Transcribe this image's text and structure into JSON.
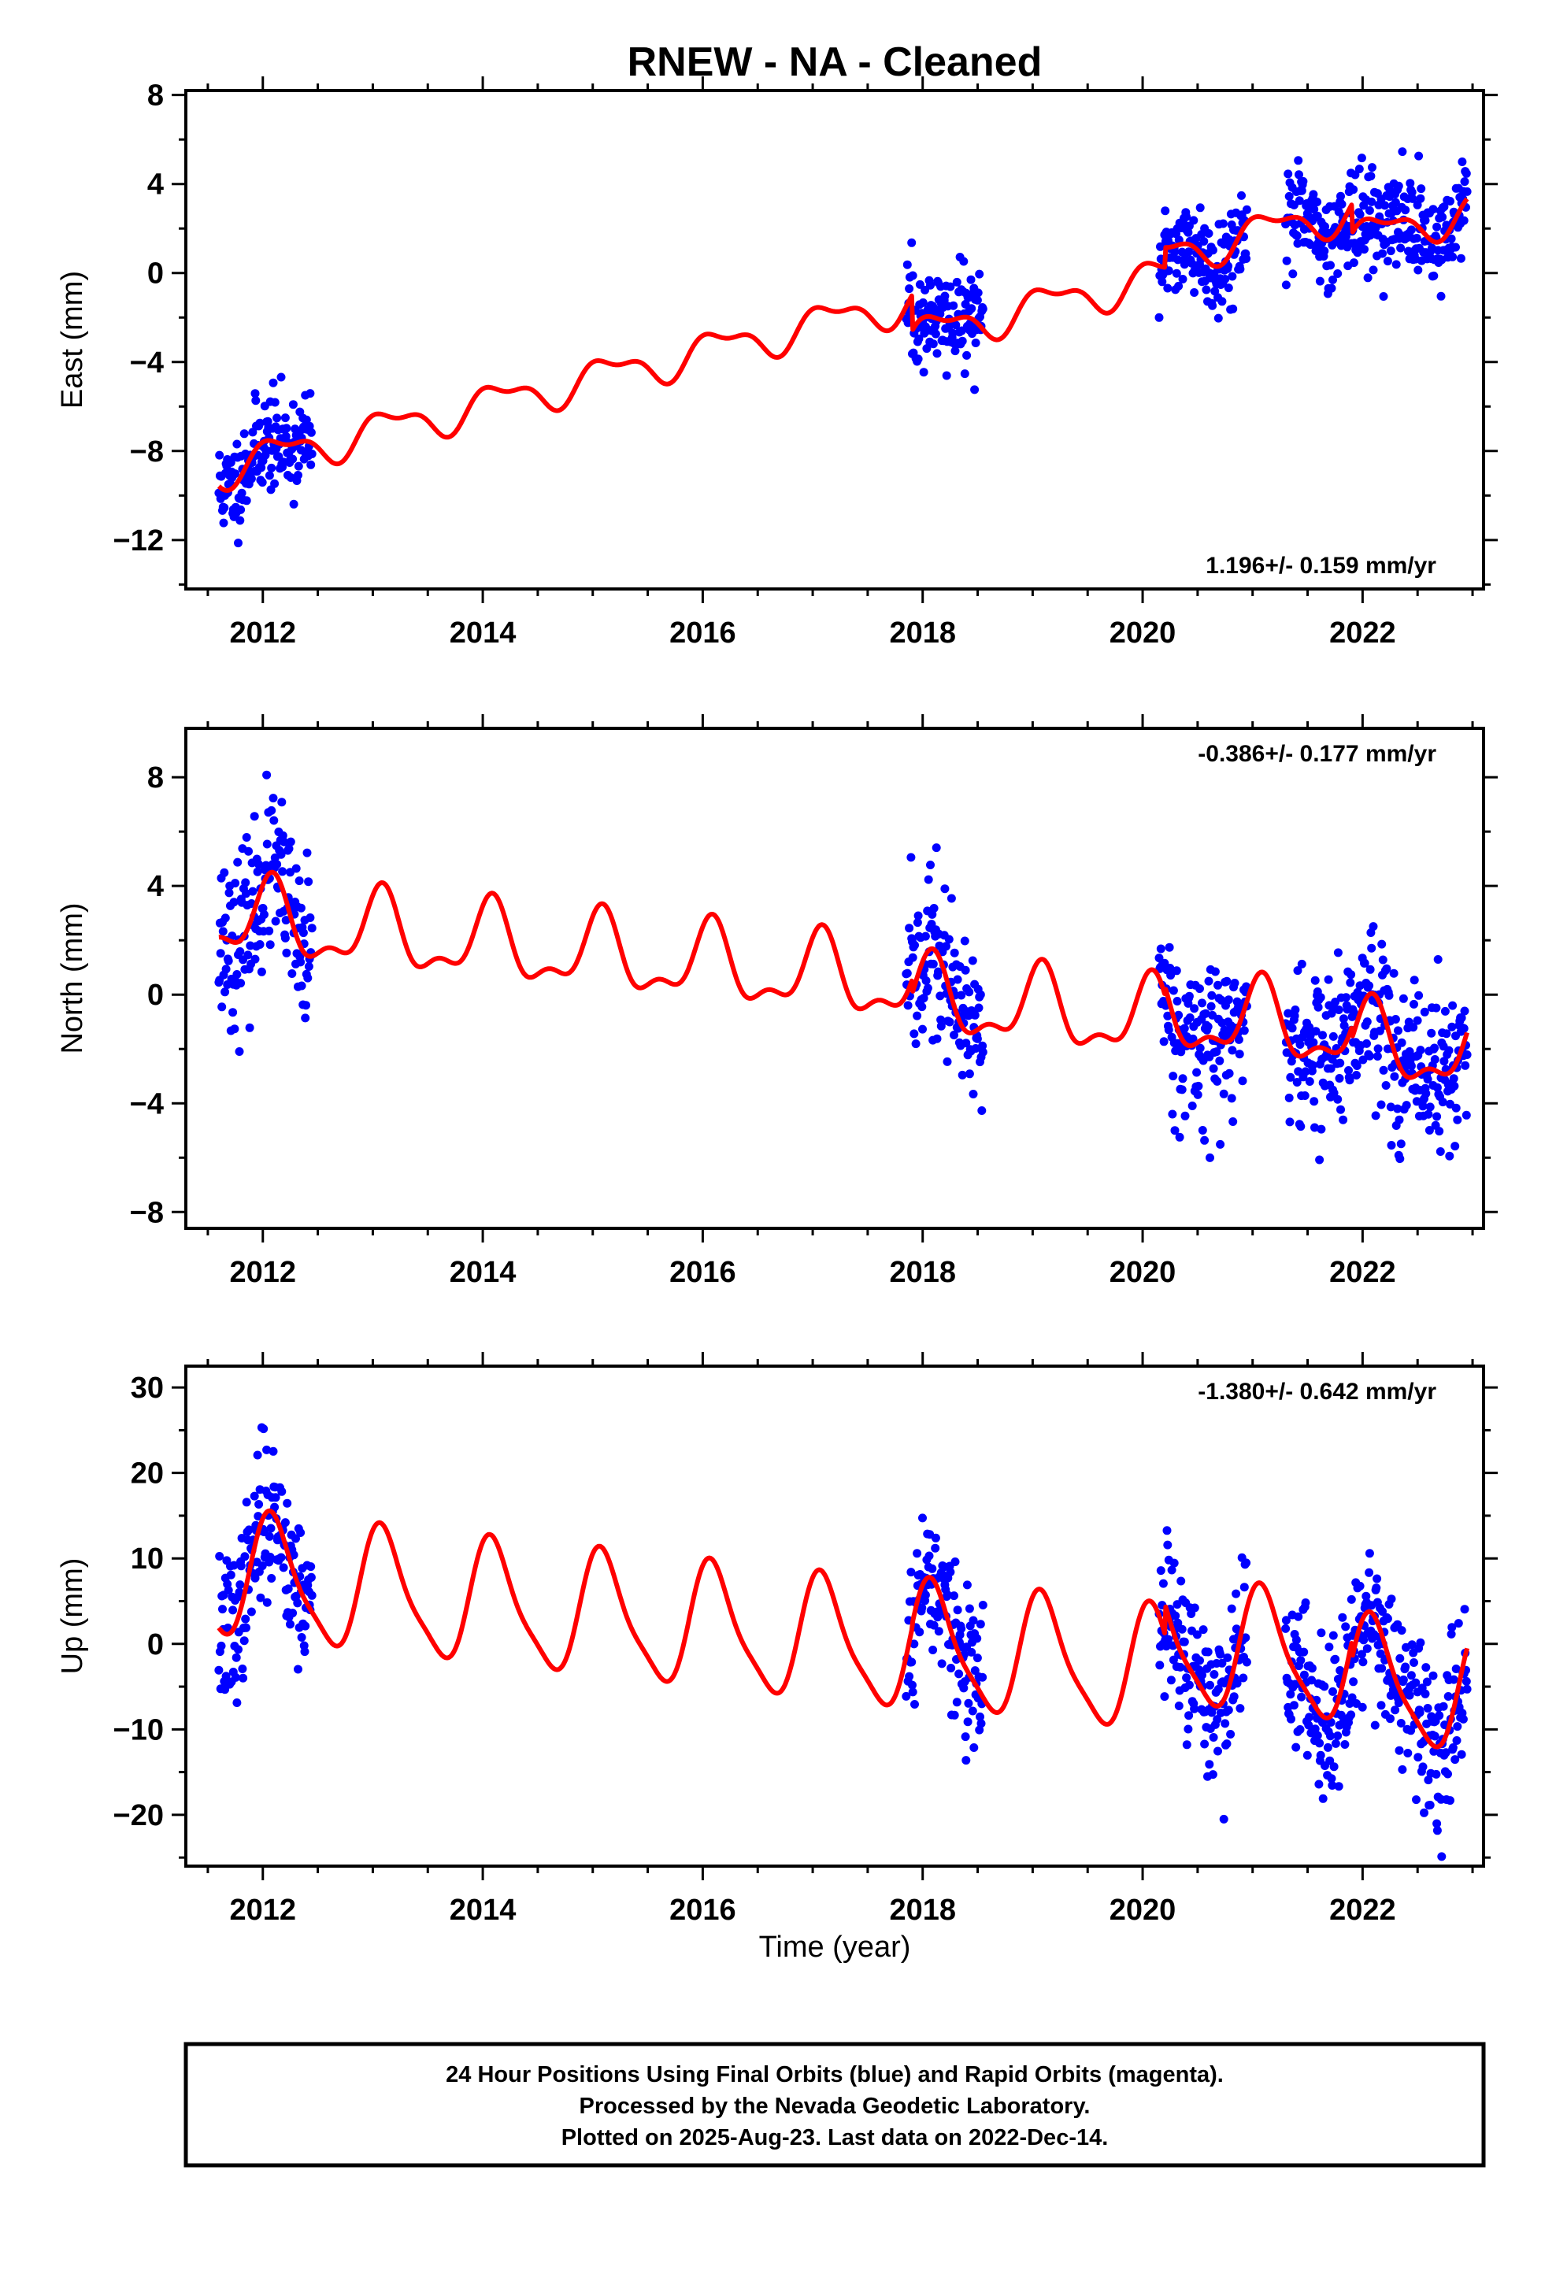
{
  "title": "RNEW  - NA - Cleaned",
  "x_label": "Time (year)",
  "caption": [
    "24 Hour Positions Using Final Orbits (blue) and Rapid Orbits (magenta).",
    "Processed by the Nevada Geodetic Laboratory.",
    "Plotted on 2025-Aug-23. Last data on 2022-Dec-14."
  ],
  "colors": {
    "points": "#0000ff",
    "model": "#ff0000",
    "frame": "#000000"
  },
  "chart_data": [
    {
      "type": "scatter",
      "ylabel": "East (mm)",
      "rate": "1.196+/- 0.159 mm/yr",
      "rate_position": "bottom-right",
      "xlim": [
        2011.3,
        2023.1
      ],
      "ylim": [
        -14.2,
        8.2
      ],
      "x_ticks": [
        2012,
        2014,
        2016,
        2018,
        2020,
        2022
      ],
      "x_tick_labels": [
        "2012",
        "2014",
        "2016",
        "2018",
        "2020",
        "2022"
      ],
      "y_ticks": [
        -12,
        -8,
        -4,
        0,
        4,
        8
      ],
      "y_tick_labels": [
        "−12",
        "−8",
        "−4",
        "0",
        "4",
        "8"
      ],
      "grid": false,
      "model": {
        "trend": [
          2011.6,
          -8.8,
          1.196
        ],
        "annual": [
          0.75,
          0.6
        ],
        "semiannual": [
          0.35,
          2.1
        ],
        "steps": [
          [
            2017.9,
            -1.6
          ],
          [
            2020.2,
            0.9
          ],
          [
            2021.9,
            -1.3
          ]
        ],
        "start": 2011.6,
        "end": 2022.95
      },
      "data_segments": [
        [
          2011.6,
          2012.45
        ],
        [
          2017.85,
          2018.55
        ],
        [
          2020.15,
          2020.95
        ],
        [
          2021.3,
          2022.95
        ]
      ],
      "noise_sd": 1.1,
      "noise_seed": 11,
      "series": [
        {
          "name": "Final Orbits",
          "marker": "points",
          "color": "#0000ff"
        },
        {
          "name": "Model",
          "marker": "line",
          "color": "#ff0000"
        }
      ]
    },
    {
      "type": "scatter",
      "ylabel": "North (mm)",
      "rate": "-0.386+/- 0.177 mm/yr",
      "rate_position": "top-right",
      "xlim": [
        2011.3,
        2023.1
      ],
      "ylim": [
        -8.6,
        9.8
      ],
      "x_ticks": [
        2012,
        2014,
        2016,
        2018,
        2020,
        2022
      ],
      "x_tick_labels": [
        "2012",
        "2014",
        "2016",
        "2018",
        "2020",
        "2022"
      ],
      "y_ticks": [
        -8,
        -4,
        0,
        4,
        8
      ],
      "y_tick_labels": [
        "−8",
        "−4",
        "0",
        "4",
        "8"
      ],
      "grid": false,
      "model": {
        "trend": [
          2011.6,
          2.8,
          -0.386
        ],
        "annual": [
          1.3,
          1.1
        ],
        "semiannual": [
          0.6,
          0.4
        ],
        "steps": [
          [
            2017.9,
            -0.5
          ],
          [
            2020.2,
            0.3
          ],
          [
            2021.9,
            -0.4
          ]
        ],
        "start": 2011.6,
        "end": 2022.95
      },
      "data_segments": [
        [
          2011.6,
          2012.45
        ],
        [
          2017.85,
          2018.55
        ],
        [
          2020.15,
          2020.95
        ],
        [
          2021.3,
          2022.95
        ]
      ],
      "noise_sd": 1.5,
      "noise_seed": 23,
      "series": [
        {
          "name": "Final Orbits",
          "marker": "points",
          "color": "#0000ff"
        },
        {
          "name": "Model",
          "marker": "line",
          "color": "#ff0000"
        }
      ]
    },
    {
      "type": "scatter",
      "ylabel": "Up (mm)",
      "rate": "-1.380+/- 0.642 mm/yr",
      "rate_position": "top-right",
      "xlim": [
        2011.3,
        2023.1
      ],
      "ylim": [
        -26,
        32.5
      ],
      "x_ticks": [
        2012,
        2014,
        2016,
        2018,
        2020,
        2022
      ],
      "x_tick_labels": [
        "2012",
        "2014",
        "2016",
        "2018",
        "2020",
        "2022"
      ],
      "y_ticks": [
        -20,
        -10,
        0,
        10,
        20,
        30
      ],
      "y_tick_labels": [
        "−20",
        "−10",
        "0",
        "10",
        "20",
        "30"
      ],
      "grid": false,
      "model": {
        "trend": [
          2011.6,
          8.0,
          -1.38
        ],
        "annual": [
          7.0,
          0.95
        ],
        "semiannual": [
          1.6,
          1.3
        ],
        "steps": [
          [
            2017.9,
            0.5
          ],
          [
            2020.2,
            3.5
          ],
          [
            2021.9,
            -2.0
          ]
        ],
        "start": 2011.6,
        "end": 2022.95
      },
      "data_segments": [
        [
          2011.6,
          2012.45
        ],
        [
          2017.85,
          2018.55
        ],
        [
          2020.15,
          2020.95
        ],
        [
          2021.3,
          2022.95
        ]
      ],
      "noise_sd": 4.5,
      "noise_seed": 37,
      "series": [
        {
          "name": "Final Orbits",
          "marker": "points",
          "color": "#0000ff"
        },
        {
          "name": "Model",
          "marker": "line",
          "color": "#ff0000"
        }
      ]
    }
  ]
}
